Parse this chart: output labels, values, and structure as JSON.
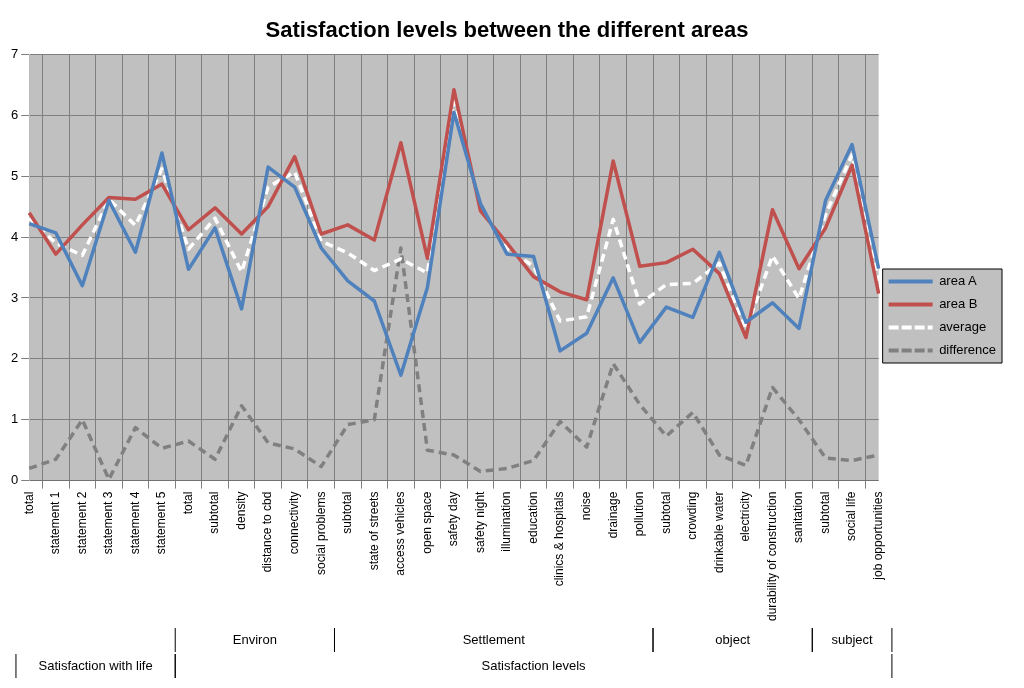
{
  "chart_data": {
    "type": "line",
    "title": "Satisfaction levels between the different areas",
    "categories": [
      "total",
      "statement 1",
      "statement 2",
      "statement 3",
      "statement 4",
      "statement 5",
      "total",
      "subtotal",
      "density",
      "distance to cbd",
      "connectivity",
      "social problems",
      "subtotal",
      "state of streets",
      "access vehicles",
      "open space",
      "safety day",
      "safety night",
      "illumination",
      "education",
      "clinics & hospitals",
      "noise",
      "drainage",
      "pollution",
      "subtotal",
      "crowding",
      "drinkable water",
      "electricity",
      "durability of construction",
      "sanitation",
      "subtotal",
      "social life",
      "job opportunities"
    ],
    "series": [
      {
        "name": "area A",
        "color": "#4f81bd",
        "line_style": "solid",
        "values": [
          4.22,
          4.07,
          3.2,
          4.6,
          3.75,
          5.38,
          3.47,
          4.15,
          2.82,
          5.15,
          4.82,
          3.82,
          3.28,
          2.95,
          1.73,
          3.17,
          6.05,
          4.55,
          3.72,
          3.68,
          2.13,
          2.42,
          3.33,
          2.27,
          2.85,
          2.68,
          3.75,
          2.6,
          2.92,
          2.5,
          4.6,
          5.52,
          3.48
        ]
      },
      {
        "name": "area B",
        "color": "#c0504d",
        "line_style": "solid",
        "values": [
          4.4,
          3.72,
          4.2,
          4.65,
          4.62,
          4.87,
          4.12,
          4.48,
          4.05,
          4.5,
          5.32,
          4.05,
          4.2,
          3.95,
          5.55,
          3.65,
          6.42,
          4.43,
          3.9,
          3.35,
          3.1,
          2.97,
          5.25,
          3.52,
          3.58,
          3.8,
          3.4,
          2.35,
          4.45,
          3.48,
          4.15,
          5.18,
          3.07
        ]
      },
      {
        "name": "average",
        "color": "#ffffff",
        "line_style": "dashed",
        "values": [
          4.31,
          3.9,
          3.7,
          4.62,
          4.19,
          5.12,
          3.8,
          4.31,
          3.43,
          4.82,
          5.07,
          3.93,
          3.74,
          3.45,
          3.64,
          3.41,
          6.23,
          4.49,
          3.81,
          3.52,
          2.62,
          2.69,
          4.29,
          2.9,
          3.22,
          3.24,
          3.57,
          2.48,
          3.69,
          2.99,
          4.37,
          5.35,
          3.28
        ]
      },
      {
        "name": "difference",
        "color": "#808080",
        "line_style": "dashed",
        "values": [
          0.2,
          0.35,
          1.0,
          0.02,
          0.87,
          0.53,
          0.65,
          0.35,
          1.23,
          0.62,
          0.52,
          0.23,
          0.92,
          1.0,
          3.82,
          0.5,
          0.42,
          0.15,
          0.2,
          0.33,
          0.97,
          0.55,
          1.92,
          1.25,
          0.73,
          1.12,
          0.42,
          0.25,
          1.53,
          1.0,
          0.37,
          0.33,
          0.42
        ]
      }
    ],
    "ylim": [
      0,
      7
    ],
    "yticks": [
      0,
      1,
      2,
      3,
      4,
      5,
      6,
      7
    ],
    "grid": true,
    "legend": "right",
    "marker": "none",
    "annotations": [
      "Environ",
      "Settlement",
      "object",
      "subject",
      "Satisfaction with life",
      "Satisfaction levels"
    ]
  }
}
